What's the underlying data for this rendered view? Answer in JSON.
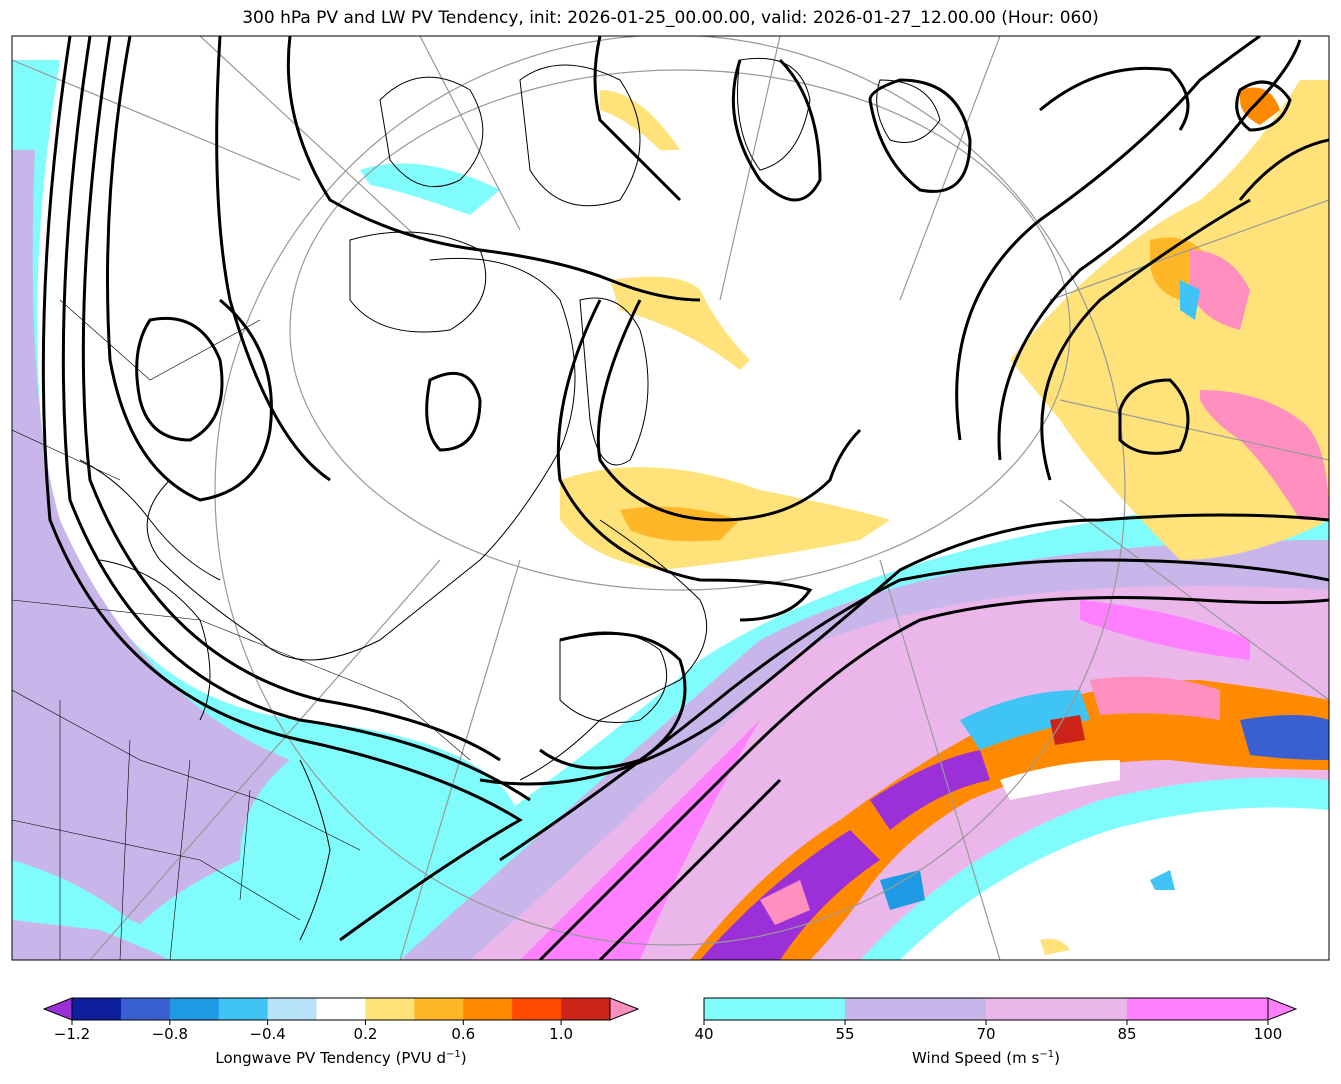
{
  "title": "300 hPa PV and LW PV Tendency, init: 2026-01-25_00.00.00, valid: 2026-01-27_12.00.00 (Hour: 060)",
  "chart_data": [
    {
      "type": "heatmap",
      "name": "pv_tendency_colorbar",
      "label_prefix": "Longwave PV Tendency (PVU d",
      "label_exp": "−1",
      "label_suffix": ")",
      "levels": [
        -1.2,
        -1.0,
        -0.8,
        -0.6,
        -0.4,
        -0.2,
        0.2,
        0.4,
        0.6,
        0.8,
        1.0,
        1.2
      ],
      "tick_values": [
        -1.2,
        -0.8,
        -0.4,
        0.2,
        0.6,
        1.0
      ],
      "tick_labels": [
        "−1.2",
        "−0.8",
        "−0.4",
        "0.2",
        "0.6",
        "1.0"
      ],
      "colors": [
        "#0d1f9c",
        "#3a5fd0",
        "#1e9be3",
        "#40c4f5",
        "#b8e2fa",
        "#ffffff",
        "#ffe27a",
        "#ffb727",
        "#ff8a00",
        "#ff4a00",
        "#cc2418"
      ],
      "extend_low_color": "#9b30d8",
      "extend_high_color": "#ff8fbf"
    },
    {
      "type": "heatmap",
      "name": "wind_speed_colorbar",
      "label_prefix": "Wind Speed (m s",
      "label_exp": "−1",
      "label_suffix": ")",
      "levels": [
        40,
        55,
        70,
        85,
        100
      ],
      "tick_values": [
        40,
        55,
        70,
        85,
        100
      ],
      "tick_labels": [
        "40",
        "55",
        "70",
        "85",
        "100"
      ],
      "colors": [
        "#80fcfc",
        "#c8b6ea",
        "#ebb6ea",
        "#ff80ff"
      ],
      "extend_high_color": "#ff80ff"
    }
  ]
}
